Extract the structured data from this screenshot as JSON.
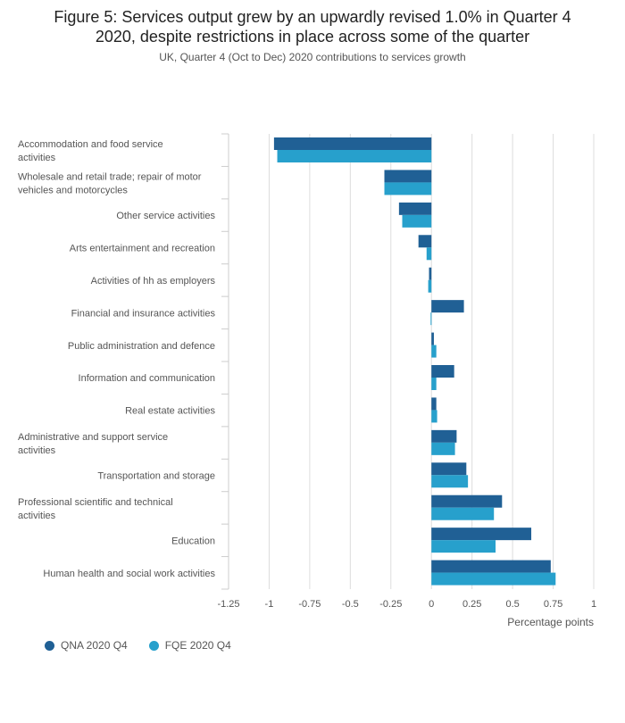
{
  "chart_data": {
    "type": "bar",
    "orientation": "horizontal",
    "title_lines": [
      "Figure 5: Services output grew by an upwardly revised 1.0% in Quarter 4",
      "2020, despite restrictions in place across some of the quarter"
    ],
    "subtitle": "UK, Quarter 4 (Oct to Dec) 2020 contributions to services growth",
    "xlabel": "Percentage points",
    "xlim": [
      -1.25,
      1
    ],
    "x_ticks": [
      "-1.25",
      "-1",
      "-0.75",
      "-0.5",
      "-0.25",
      "0",
      "0.25",
      "0.5",
      "0.75",
      "1"
    ],
    "x_tick_values": [
      -1.25,
      -1,
      -0.75,
      -0.5,
      -0.25,
      0,
      0.25,
      0.5,
      0.75,
      1
    ],
    "categories": [
      [
        "Accommodation and food service",
        "activities"
      ],
      [
        "Wholesale and retail trade; repair of motor",
        "vehicles and motorcycles"
      ],
      [
        "Other service activities"
      ],
      [
        "Arts entertainment and recreation"
      ],
      [
        "Activities of hh as employers"
      ],
      [
        "Financial and insurance activities"
      ],
      [
        "Public administration and defence"
      ],
      [
        "Information and communication"
      ],
      [
        "Real estate activities"
      ],
      [
        "Administrative and support service",
        "activities"
      ],
      [
        "Transportation and storage"
      ],
      [
        "Professional scientific and technical",
        "activities"
      ],
      [
        "Education"
      ],
      [
        "Human health and social work activities"
      ]
    ],
    "series": [
      {
        "name": "QNA 2020 Q4",
        "color": "#206095",
        "values": [
          -0.97,
          -0.29,
          -0.2,
          -0.08,
          -0.015,
          0.2,
          0.015,
          0.14,
          0.03,
          0.155,
          0.215,
          0.435,
          0.615,
          0.735
        ]
      },
      {
        "name": "FQE 2020 Q4",
        "color": "#27a0cc",
        "values": [
          -0.95,
          -0.29,
          -0.18,
          -0.03,
          -0.02,
          -0.005,
          0.03,
          0.03,
          0.035,
          0.145,
          0.225,
          0.385,
          0.395,
          0.765
        ]
      }
    ],
    "grid": true,
    "legend_position": "bottom-left"
  }
}
